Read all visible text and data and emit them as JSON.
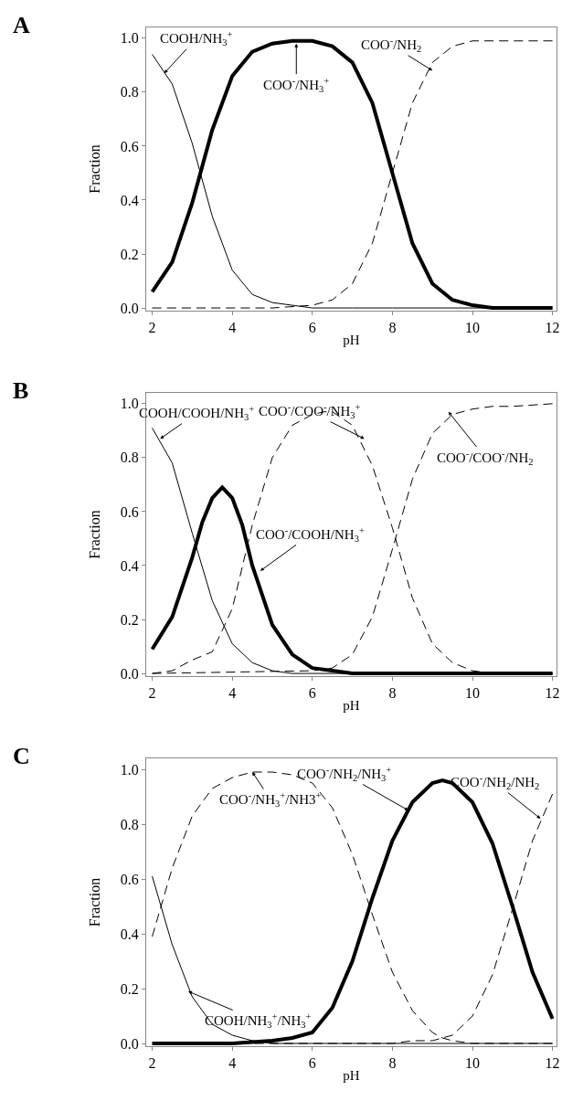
{
  "chart_data": [
    {
      "type": "line",
      "title": "A",
      "xlabel": "pH",
      "ylabel": "Fraction",
      "xlim": [
        1.85,
        12.1
      ],
      "ylim": [
        -0.01,
        1.04
      ],
      "xticks": [
        2,
        4,
        6,
        8,
        10,
        12
      ],
      "yticks": [
        {
          "value": 0,
          "label": "0.0"
        },
        {
          "value": 0.2,
          "label": "0.2"
        },
        {
          "value": 0.4,
          "label": "0.4"
        },
        {
          "value": 0.6,
          "label": "0.6"
        },
        {
          "value": 0.8,
          "label": "0.8"
        },
        {
          "value": 1,
          "label": "1.0"
        }
      ],
      "grid": false,
      "marker": "none",
      "series": [
        {
          "color": "#000000",
          "line_style": "solid",
          "x": [
            2,
            2.5,
            3,
            3.5,
            4,
            4.5,
            5,
            5.5,
            6,
            7,
            8,
            10,
            12
          ],
          "values": [
            0.94,
            0.83,
            0.61,
            0.34,
            0.14,
            0.05,
            0.02,
            0.01,
            0,
            0,
            0,
            0,
            0
          ]
        },
        {
          "color": "#000000",
          "line_style": "solid",
          "x": [
            2,
            2.5,
            3,
            3.5,
            4,
            4.5,
            5,
            5.5,
            6,
            6.5,
            7,
            7.5,
            8,
            8.5,
            9,
            9.5,
            10,
            10.5,
            11,
            12
          ],
          "values": [
            0.06,
            0.17,
            0.39,
            0.66,
            0.86,
            0.95,
            0.98,
            0.99,
            0.99,
            0.97,
            0.91,
            0.76,
            0.5,
            0.24,
            0.09,
            0.03,
            0.01,
            0,
            0,
            0
          ]
        },
        {
          "color": "#000000",
          "line_style": "dashed",
          "x": [
            2,
            4,
            5,
            6,
            6.5,
            7,
            7.5,
            8,
            8.5,
            9,
            9.5,
            10,
            11,
            12
          ],
          "values": [
            0,
            0,
            0,
            0.01,
            0.03,
            0.09,
            0.24,
            0.5,
            0.76,
            0.91,
            0.97,
            0.99,
            0.99,
            0.99
          ]
        }
      ],
      "annotations": [
        {
          "text": "COOH/NH$_{3}$$^{+}$",
          "x": 2.3,
          "y": 0.87
        },
        {
          "text": "COO$^{-}$/NH$_{3}$$^{+}$",
          "x": 5.6,
          "y": 0.98
        },
        {
          "text": "COO$^{-}$/NH$_{2}$",
          "x": 9.0,
          "y": 0.88
        }
      ]
    },
    {
      "type": "line",
      "title": "B",
      "xlabel": "pH",
      "ylabel": "Fraction",
      "xlim": [
        1.85,
        12.1
      ],
      "ylim": [
        -0.01,
        1.04
      ],
      "xticks": [
        2,
        4,
        6,
        8,
        10,
        12
      ],
      "yticks": [
        {
          "value": 0,
          "label": "0.0"
        },
        {
          "value": 0.2,
          "label": "0.2"
        },
        {
          "value": 0.4,
          "label": "0.4"
        },
        {
          "value": 0.6,
          "label": "0.6"
        },
        {
          "value": 0.8,
          "label": "0.8"
        },
        {
          "value": 1,
          "label": "1.0"
        }
      ],
      "grid": false,
      "marker": "none",
      "series": [
        {
          "color": "#000000",
          "line_style": "solid",
          "x": [
            2,
            2.5,
            3,
            3.5,
            4,
            4.5,
            5,
            5.5,
            6,
            8,
            12
          ],
          "values": [
            0.91,
            0.78,
            0.52,
            0.27,
            0.11,
            0.04,
            0.01,
            0,
            0,
            0,
            0
          ]
        },
        {
          "color": "#000000",
          "line_style": "solid",
          "x": [
            2,
            2.5,
            3,
            3.25,
            3.5,
            3.75,
            4,
            4.25,
            4.5,
            5,
            5.5,
            6,
            6.5,
            7,
            8,
            12
          ],
          "values": [
            0.09,
            0.21,
            0.43,
            0.56,
            0.65,
            0.69,
            0.65,
            0.55,
            0.4,
            0.18,
            0.07,
            0.02,
            0.01,
            0,
            0,
            0
          ]
        },
        {
          "color": "#000000",
          "line_style": "dashed",
          "x": [
            2,
            2.5,
            3,
            3.5,
            4,
            4.5,
            5,
            5.5,
            6,
            6.3,
            6.5,
            7,
            7.5,
            8,
            8.5,
            9,
            9.5,
            10,
            10.5,
            11,
            12
          ],
          "values": [
            0,
            0.01,
            0.05,
            0.08,
            0.24,
            0.55,
            0.8,
            0.92,
            0.96,
            0.97,
            0.97,
            0.92,
            0.77,
            0.54,
            0.28,
            0.11,
            0.04,
            0.01,
            0,
            0,
            0
          ]
        },
        {
          "color": "#000000",
          "line_style": "dashed",
          "x": [
            2,
            6,
            6.5,
            7,
            7.5,
            8,
            8.5,
            9,
            9.5,
            10,
            10.5,
            11,
            12
          ],
          "values": [
            0,
            0.01,
            0.02,
            0.07,
            0.21,
            0.46,
            0.72,
            0.89,
            0.96,
            0.98,
            0.99,
            0.99,
            1.0
          ]
        }
      ],
      "annotations": [
        {
          "text": "COOH/COOH/NH$_{3}$$^{+}$",
          "x": 2.2,
          "y": 0.87
        },
        {
          "text": "COO$^{-}$/COO$^{-}$/NH$_{3}$$^{+}$",
          "x": 7.3,
          "y": 0.87
        },
        {
          "text": "COO$^{-}$/COOH/NH$_{3}$$^{+}$",
          "x": 4.7,
          "y": 0.38
        },
        {
          "text": "COO$^{-}$/COO$^{-}$/NH$_{2}$",
          "x": 9.4,
          "y": 0.97
        }
      ]
    },
    {
      "type": "line",
      "title": "C",
      "xlabel": "pH",
      "ylabel": "Fraction",
      "xlim": [
        1.85,
        12.1
      ],
      "ylim": [
        -0.01,
        1.04
      ],
      "xticks": [
        2,
        4,
        6,
        8,
        10,
        12
      ],
      "yticks": [
        {
          "value": 0,
          "label": "0.0"
        },
        {
          "value": 0.2,
          "label": "0.2"
        },
        {
          "value": 0.4,
          "label": "0.4"
        },
        {
          "value": 0.6,
          "label": "0.6"
        },
        {
          "value": 0.8,
          "label": "0.8"
        },
        {
          "value": 1,
          "label": "1.0"
        }
      ],
      "grid": false,
      "marker": "none",
      "series": [
        {
          "color": "#000000",
          "line_style": "solid",
          "x": [
            2,
            2.5,
            3,
            3.5,
            4,
            4.5,
            5,
            6,
            8,
            12
          ],
          "values": [
            0.61,
            0.36,
            0.17,
            0.07,
            0.03,
            0.01,
            0,
            0,
            0,
            0
          ]
        },
        {
          "color": "#000000",
          "line_style": "dashed",
          "x": [
            2,
            2.5,
            3,
            3.5,
            4,
            4.5,
            5,
            5.5,
            6,
            6.5,
            7,
            7.5,
            8,
            8.5,
            9,
            9.25,
            9.5,
            10,
            11,
            12
          ],
          "values": [
            0.39,
            0.64,
            0.83,
            0.93,
            0.97,
            0.99,
            0.99,
            0.98,
            0.95,
            0.86,
            0.69,
            0.47,
            0.26,
            0.12,
            0.04,
            0.02,
            0.01,
            0,
            0,
            0
          ]
        },
        {
          "color": "#000000",
          "line_style": "solid",
          "x": [
            2,
            4,
            5,
            5.5,
            6,
            6.5,
            7,
            7.5,
            8,
            8.5,
            9,
            9.25,
            9.5,
            10,
            10.5,
            11,
            11.5,
            12
          ],
          "values": [
            0,
            0,
            0.01,
            0.02,
            0.04,
            0.13,
            0.3,
            0.53,
            0.74,
            0.88,
            0.95,
            0.96,
            0.95,
            0.88,
            0.73,
            0.5,
            0.26,
            0.09
          ]
        },
        {
          "color": "#000000",
          "line_style": "dashed",
          "x": [
            2,
            8,
            8.5,
            9,
            9.25,
            9.5,
            10,
            10.5,
            11,
            11.5,
            12
          ],
          "values": [
            0,
            0,
            0.01,
            0.01,
            0.02,
            0.03,
            0.1,
            0.25,
            0.49,
            0.74,
            0.91
          ]
        }
      ],
      "annotations": [
        {
          "text": "COOH/NH$_{3}$$^{+}$/NH$_{3}$$^{+}$",
          "x": 2.9,
          "y": 0.19
        },
        {
          "text": "COO$^{-}$/NH$_{3}$$^{+}$/NH3$^{+}$",
          "x": 4.5,
          "y": 0.99
        },
        {
          "text": "COO$^{-}$/NH$_{2}$/NH$_{3}$$^{+}$",
          "x": 8.4,
          "y": 0.85
        },
        {
          "text": "COO$^{-}$/NH$_{2}$/NH$_{2}$",
          "x": 11.7,
          "y": 0.82
        }
      ]
    }
  ]
}
